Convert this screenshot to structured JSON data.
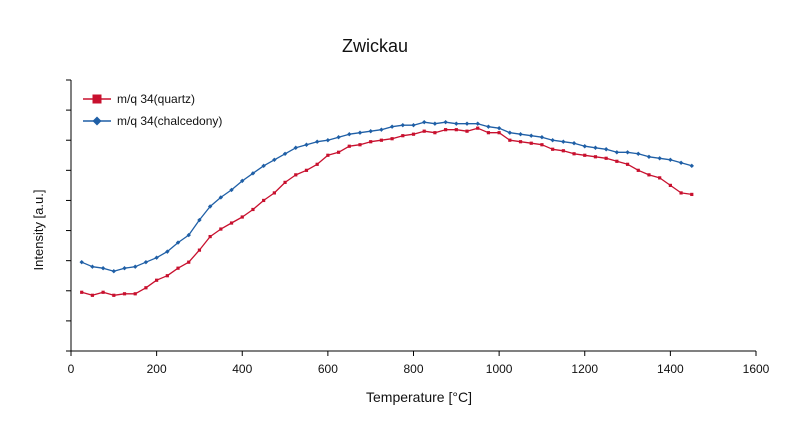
{
  "colors": {
    "quartz": "#c8102e",
    "chalcedony": "#1f5fa6",
    "axis": "#000000"
  },
  "chart_data": {
    "type": "line",
    "title": "Zwickau",
    "xlabel": "Temperature [°C]",
    "ylabel": "Intensity [a.u.]",
    "xlim": [
      0,
      1600
    ],
    "ylim": [
      0,
      9
    ],
    "x_ticks": [
      0,
      200,
      400,
      600,
      800,
      1000,
      1200,
      1400,
      1600
    ],
    "y_tick_labels_shown": false,
    "grid": false,
    "legend_position": "top-left",
    "series": [
      {
        "name": "m/q 34(quartz)",
        "color": "#c8102e",
        "marker": "square",
        "x": [
          25,
          50,
          75,
          100,
          125,
          150,
          175,
          200,
          225,
          250,
          275,
          300,
          325,
          350,
          375,
          400,
          425,
          450,
          475,
          500,
          525,
          550,
          575,
          600,
          625,
          650,
          675,
          700,
          725,
          750,
          775,
          800,
          825,
          850,
          875,
          900,
          925,
          950,
          975,
          1000,
          1025,
          1050,
          1075,
          1100,
          1125,
          1150,
          1175,
          1200,
          1225,
          1250,
          1275,
          1300,
          1325,
          1350,
          1375,
          1400,
          1425,
          1450
        ],
        "values": [
          1.95,
          1.85,
          1.95,
          1.85,
          1.9,
          1.9,
          2.1,
          2.35,
          2.5,
          2.75,
          2.95,
          3.35,
          3.8,
          4.05,
          4.25,
          4.45,
          4.7,
          5.0,
          5.25,
          5.6,
          5.85,
          6.0,
          6.2,
          6.5,
          6.6,
          6.8,
          6.85,
          6.95,
          7.0,
          7.05,
          7.15,
          7.2,
          7.3,
          7.25,
          7.35,
          7.35,
          7.3,
          7.4,
          7.25,
          7.25,
          7.0,
          6.95,
          6.9,
          6.85,
          6.7,
          6.65,
          6.55,
          6.5,
          6.45,
          6.4,
          6.3,
          6.2,
          6.0,
          5.85,
          5.75,
          5.5,
          5.25,
          5.2
        ]
      },
      {
        "name": "m/q 34(chalcedony)",
        "color": "#1f5fa6",
        "marker": "diamond",
        "x": [
          25,
          50,
          75,
          100,
          125,
          150,
          175,
          200,
          225,
          250,
          275,
          300,
          325,
          350,
          375,
          400,
          425,
          450,
          475,
          500,
          525,
          550,
          575,
          600,
          625,
          650,
          675,
          700,
          725,
          750,
          775,
          800,
          825,
          850,
          875,
          900,
          925,
          950,
          975,
          1000,
          1025,
          1050,
          1075,
          1100,
          1125,
          1150,
          1175,
          1200,
          1225,
          1250,
          1275,
          1300,
          1325,
          1350,
          1375,
          1400,
          1425,
          1450
        ],
        "values": [
          2.95,
          2.8,
          2.75,
          2.65,
          2.75,
          2.8,
          2.95,
          3.1,
          3.3,
          3.6,
          3.85,
          4.35,
          4.8,
          5.1,
          5.35,
          5.65,
          5.9,
          6.15,
          6.35,
          6.55,
          6.75,
          6.85,
          6.95,
          7.0,
          7.1,
          7.2,
          7.25,
          7.3,
          7.35,
          7.45,
          7.5,
          7.5,
          7.6,
          7.55,
          7.6,
          7.55,
          7.55,
          7.55,
          7.45,
          7.4,
          7.25,
          7.2,
          7.15,
          7.1,
          7.0,
          6.95,
          6.9,
          6.8,
          6.75,
          6.7,
          6.6,
          6.6,
          6.55,
          6.45,
          6.4,
          6.35,
          6.25,
          6.15
        ]
      }
    ]
  }
}
